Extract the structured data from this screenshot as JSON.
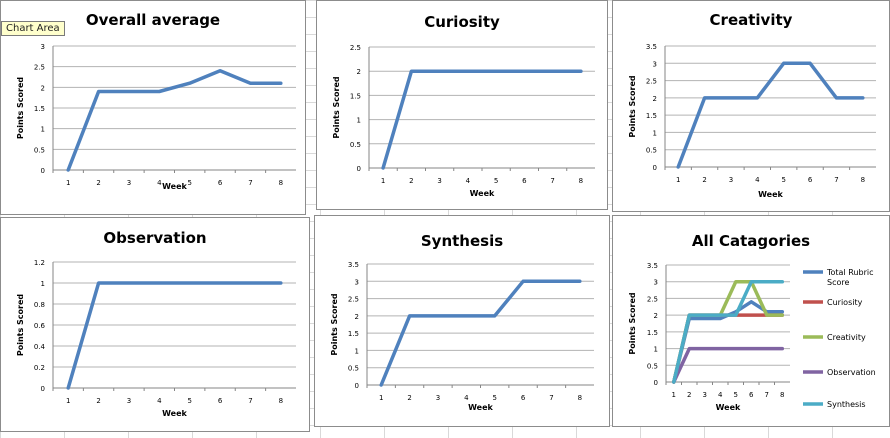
{
  "tooltip": "Chart Area",
  "colors": {
    "primary": "#4f81bd",
    "curiosity": "#c0504d",
    "creativity": "#9bbb59",
    "observation": "#8064a2",
    "synthesis": "#4bacc6"
  },
  "chart_data": [
    {
      "type": "line",
      "title": "Overall average",
      "xlabel": "Week",
      "ylabel": "Points Scored",
      "categories": [
        "1",
        "2",
        "3",
        "4",
        "5",
        "6",
        "7",
        "8"
      ],
      "yticks": [
        "0",
        "0.5",
        "1",
        "1.5",
        "2",
        "2.5",
        "3"
      ],
      "ylim": [
        0,
        3
      ],
      "grid": true,
      "series": [
        {
          "values": [
            0,
            1.9,
            1.9,
            1.9,
            2.1,
            2.4,
            2.1,
            2.1
          ],
          "color": "#4f81bd"
        }
      ]
    },
    {
      "type": "line",
      "title": "Curiosity",
      "xlabel": "Week",
      "ylabel": "Points Scored",
      "categories": [
        "1",
        "2",
        "3",
        "4",
        "5",
        "6",
        "7",
        "8"
      ],
      "yticks": [
        "0",
        "0.5",
        "1",
        "1.5",
        "2",
        "2.5"
      ],
      "ylim": [
        0,
        2.5
      ],
      "grid": true,
      "series": [
        {
          "values": [
            0,
            2,
            2,
            2,
            2,
            2,
            2,
            2
          ],
          "color": "#4f81bd"
        }
      ]
    },
    {
      "type": "line",
      "title": "Creativity",
      "xlabel": "Week",
      "ylabel": "Points Scored",
      "categories": [
        "1",
        "2",
        "3",
        "4",
        "5",
        "6",
        "7",
        "8"
      ],
      "yticks": [
        "0",
        "0.5",
        "1",
        "1.5",
        "2",
        "2.5",
        "3",
        "3.5"
      ],
      "ylim": [
        0,
        3.5
      ],
      "grid": true,
      "series": [
        {
          "values": [
            0,
            2,
            2,
            2,
            3,
            3,
            2,
            2
          ],
          "color": "#4f81bd"
        }
      ]
    },
    {
      "type": "line",
      "title": "Observation",
      "xlabel": "Week",
      "ylabel": "Points Scored",
      "categories": [
        "1",
        "2",
        "3",
        "4",
        "5",
        "6",
        "7",
        "8"
      ],
      "yticks": [
        "0",
        "0.2",
        "0.4",
        "0.6",
        "0.8",
        "1",
        "1.2"
      ],
      "ylim": [
        0,
        1.2
      ],
      "grid": true,
      "series": [
        {
          "values": [
            0,
            1,
            1,
            1,
            1,
            1,
            1,
            1
          ],
          "color": "#4f81bd"
        }
      ]
    },
    {
      "type": "line",
      "title": "Synthesis",
      "xlabel": "Week",
      "ylabel": "Points Scored",
      "categories": [
        "1",
        "2",
        "3",
        "4",
        "5",
        "6",
        "7",
        "8"
      ],
      "yticks": [
        "0",
        "0.5",
        "1",
        "1.5",
        "2",
        "2.5",
        "3",
        "3.5"
      ],
      "ylim": [
        0,
        3.5
      ],
      "grid": true,
      "series": [
        {
          "values": [
            0,
            2,
            2,
            2,
            2,
            3,
            3,
            3
          ],
          "color": "#4f81bd"
        }
      ]
    },
    {
      "type": "line",
      "title": "All Catagories",
      "xlabel": "Week",
      "ylabel": "Points Scored",
      "categories": [
        "1",
        "2",
        "3",
        "4",
        "5",
        "6",
        "7",
        "8"
      ],
      "yticks": [
        "0",
        "0.5",
        "1",
        "1.5",
        "2",
        "2.5",
        "3",
        "3.5"
      ],
      "ylim": [
        0,
        3.5
      ],
      "grid": true,
      "legend": "right",
      "series": [
        {
          "name": "Total Rubric Score",
          "values": [
            0,
            1.9,
            1.9,
            1.9,
            2.1,
            2.4,
            2.1,
            2.1
          ],
          "color": "#4f81bd"
        },
        {
          "name": "Curiosity",
          "values": [
            0,
            2,
            2,
            2,
            2,
            2,
            2,
            2
          ],
          "color": "#c0504d"
        },
        {
          "name": "Creativity",
          "values": [
            0,
            2,
            2,
            2,
            3,
            3,
            2,
            2
          ],
          "color": "#9bbb59"
        },
        {
          "name": "Observation",
          "values": [
            0,
            1,
            1,
            1,
            1,
            1,
            1,
            1
          ],
          "color": "#8064a2"
        },
        {
          "name": "Synthesis",
          "values": [
            0,
            2,
            2,
            2,
            2,
            3,
            3,
            3
          ],
          "color": "#4bacc6"
        }
      ]
    }
  ]
}
